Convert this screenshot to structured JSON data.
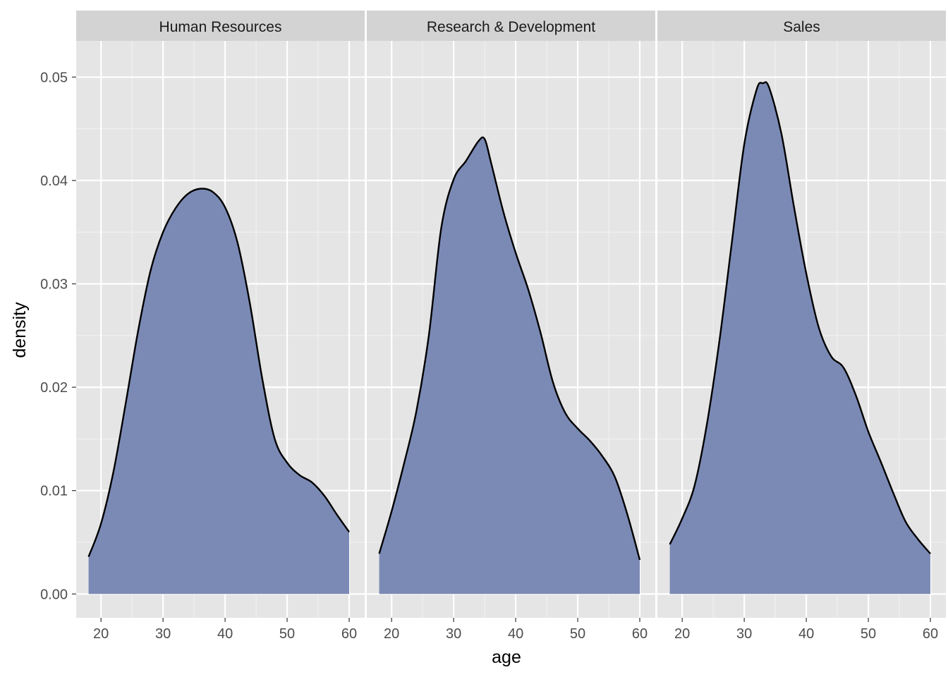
{
  "chart_data": {
    "type": "area",
    "facet_by": "department",
    "xlabel": "age",
    "ylabel": "density",
    "xlim": [
      16,
      62.5
    ],
    "ylim": [
      -0.0023,
      0.0535
    ],
    "x_ticks": [
      20,
      30,
      40,
      50,
      60
    ],
    "y_ticks": [
      0.0,
      0.01,
      0.02,
      0.03,
      0.04,
      0.05
    ],
    "y_tick_labels": [
      "0.00",
      "0.01",
      "0.02",
      "0.03",
      "0.04",
      "0.05"
    ],
    "grid": true,
    "legend": "none",
    "colors": {
      "fill": "#7b8ab5",
      "outline": "#000000",
      "panel_bg": "#e5e5e5",
      "strip_bg": "#d3d3d3",
      "grid_major": "#ffffff",
      "grid_minor": "#f2f2f2"
    },
    "panels": [
      {
        "name": "Human Resources",
        "x": [
          18,
          20,
          22,
          24,
          26,
          28,
          30,
          32,
          34,
          36,
          38,
          40,
          42,
          44,
          46,
          48,
          50,
          52,
          54,
          56,
          58,
          60
        ],
        "y": [
          0.0036,
          0.0068,
          0.0118,
          0.0185,
          0.0255,
          0.0313,
          0.035,
          0.0373,
          0.0387,
          0.0392,
          0.0389,
          0.0374,
          0.034,
          0.0281,
          0.0208,
          0.015,
          0.0127,
          0.0115,
          0.0108,
          0.0095,
          0.0077,
          0.006
        ]
      },
      {
        "name": "Research & Development",
        "x": [
          18,
          20,
          22,
          24,
          26,
          28,
          30,
          32,
          34,
          35,
          36,
          38,
          40,
          42,
          44,
          46,
          48,
          50,
          52,
          54,
          56,
          58,
          60
        ],
        "y": [
          0.0039,
          0.008,
          0.0126,
          0.0177,
          0.025,
          0.0354,
          0.0401,
          0.0419,
          0.0438,
          0.044,
          0.0418,
          0.037,
          0.033,
          0.0295,
          0.0253,
          0.0205,
          0.0175,
          0.016,
          0.0148,
          0.0133,
          0.0113,
          0.0077,
          0.0033
        ]
      },
      {
        "name": "Sales",
        "x": [
          18,
          20,
          22,
          24,
          26,
          28,
          30,
          32,
          33,
          34,
          36,
          38,
          40,
          42,
          44,
          46,
          48,
          50,
          52,
          54,
          56,
          58,
          60
        ],
        "y": [
          0.0048,
          0.0073,
          0.0105,
          0.0165,
          0.0245,
          0.034,
          0.0435,
          0.0488,
          0.0494,
          0.049,
          0.0445,
          0.0375,
          0.031,
          0.0258,
          0.023,
          0.0219,
          0.0192,
          0.0157,
          0.0128,
          0.0098,
          0.007,
          0.0053,
          0.0039
        ]
      }
    ]
  }
}
